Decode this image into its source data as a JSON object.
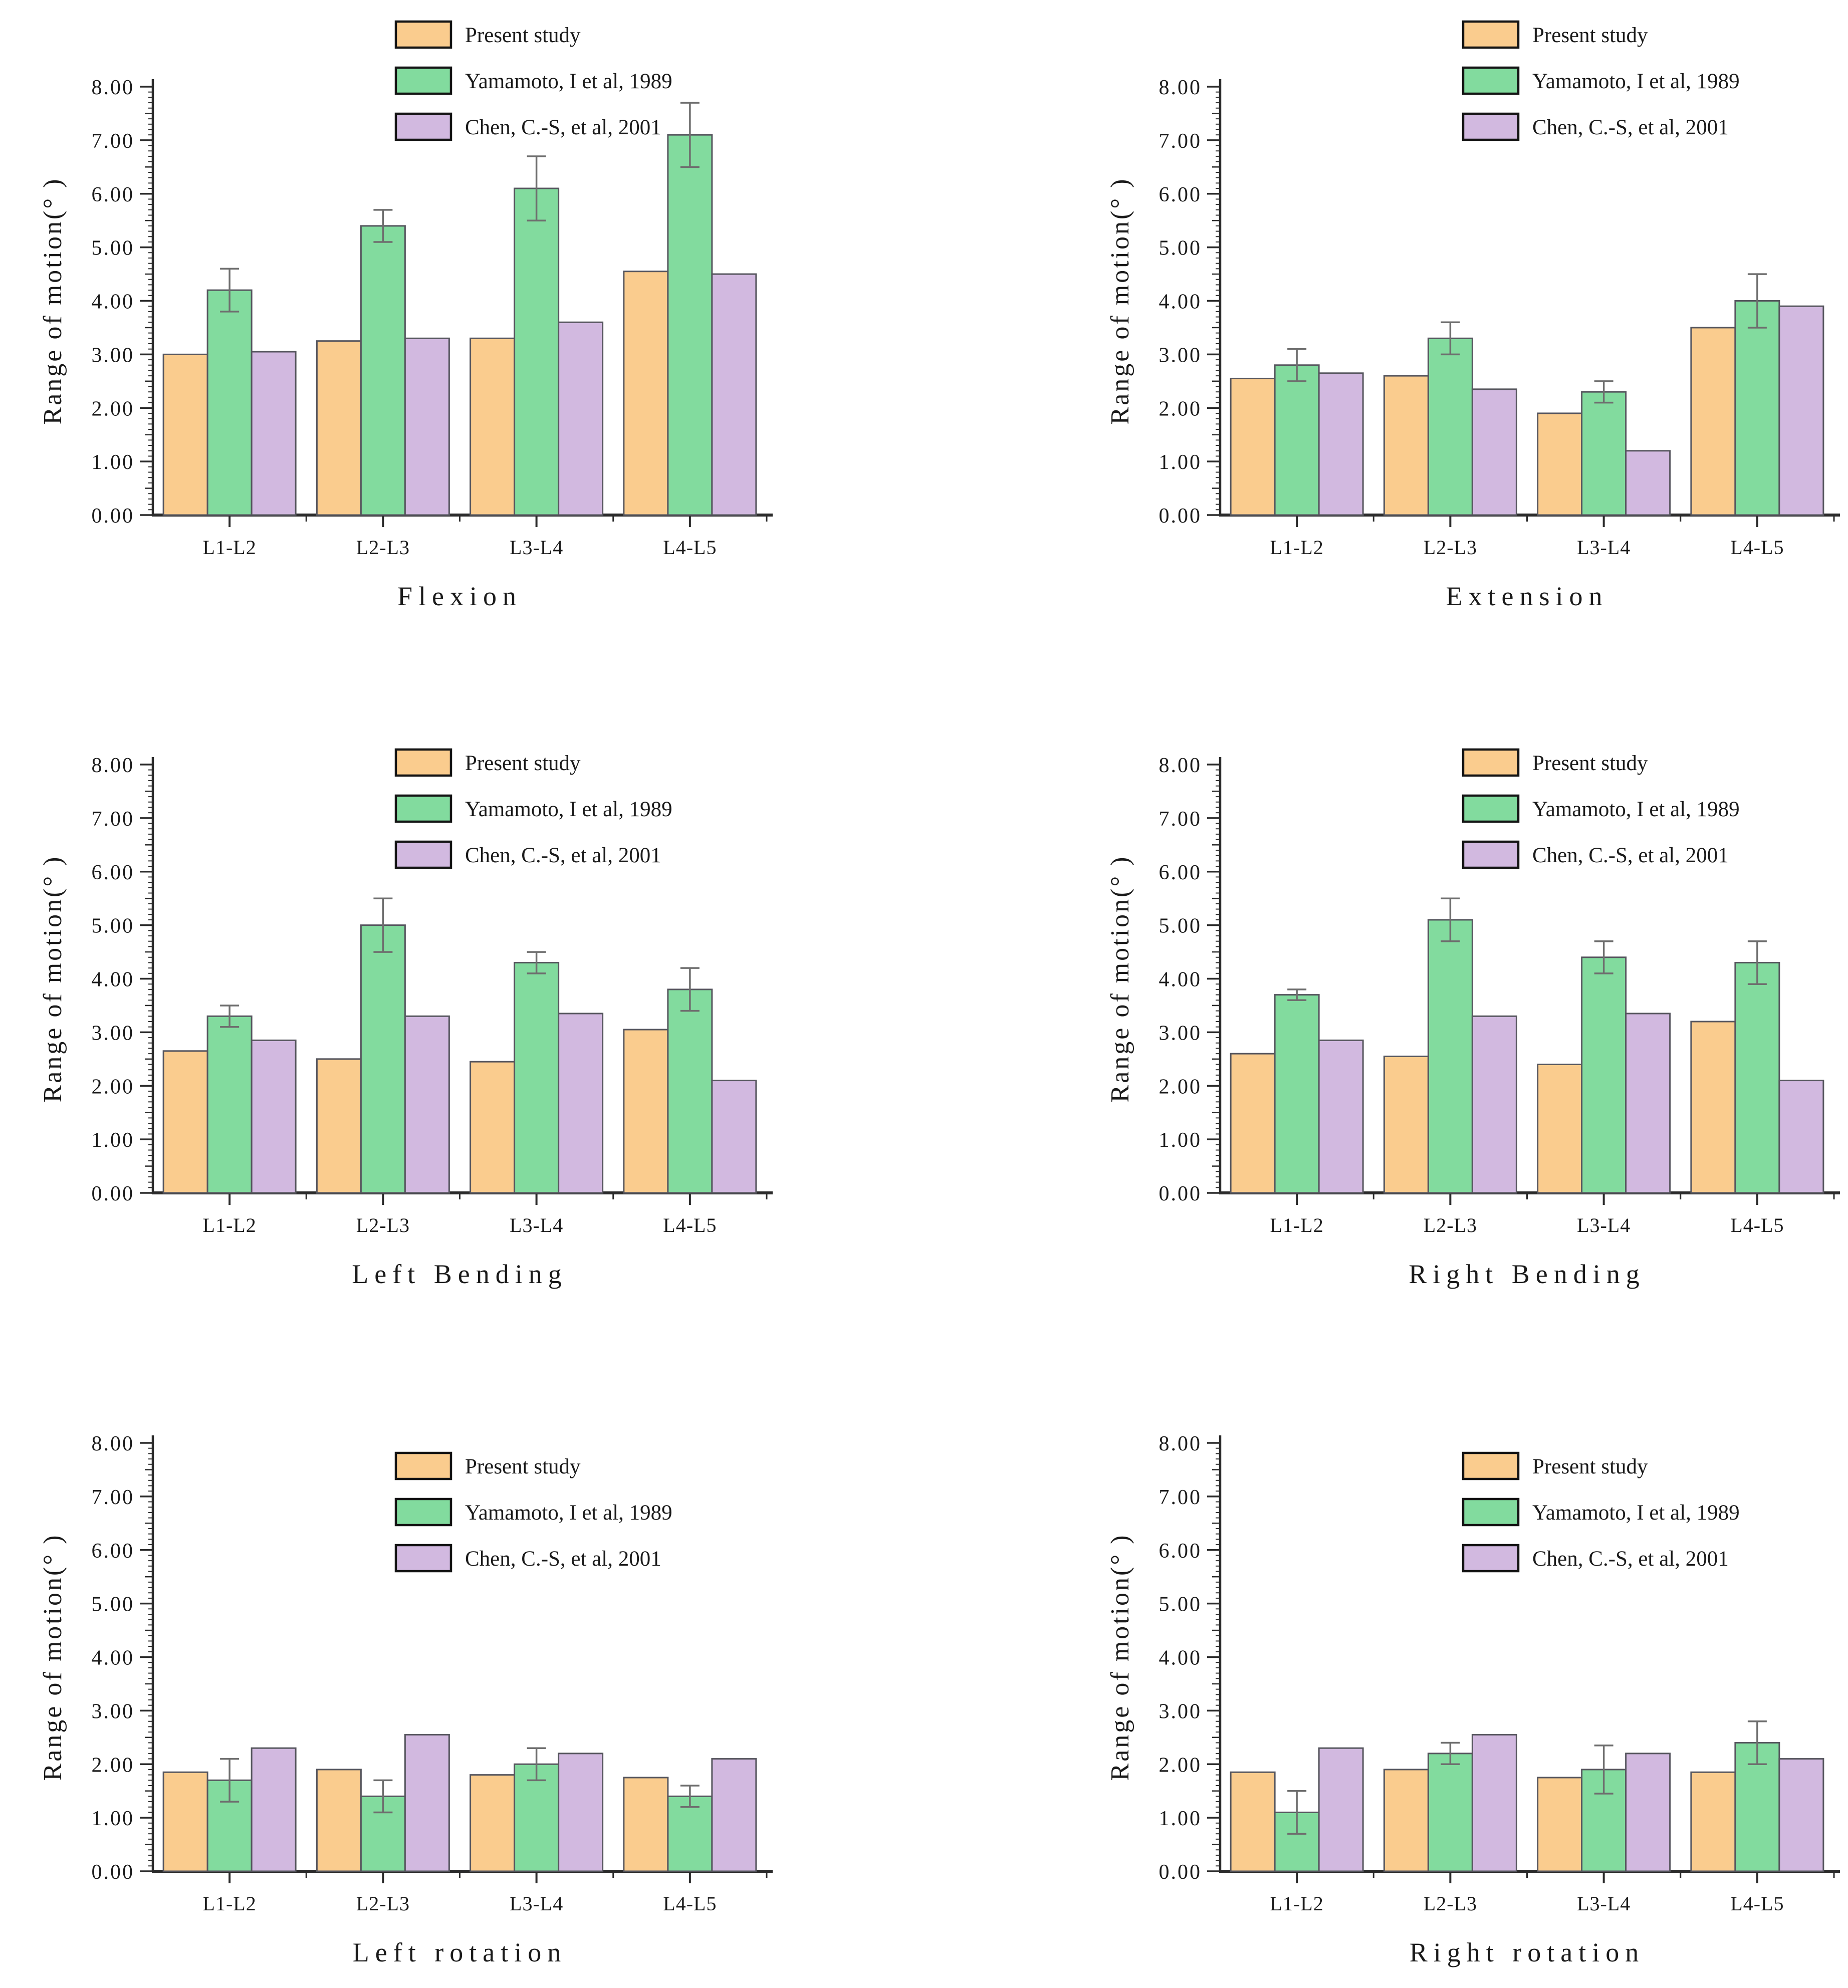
{
  "page": {
    "background": "#ffffff"
  },
  "legend": {
    "items": [
      {
        "label": "Present study",
        "color": "#FACC8E"
      },
      {
        "label": "Yamamoto, I et al,  1989",
        "color": "#82DB9E"
      },
      {
        "label": "Chen, C.-S,  et al,  2001",
        "color": "#D2B9E0"
      }
    ]
  },
  "axes": {
    "ylabel": "Range of motion(° )",
    "ylim": [
      0,
      8
    ],
    "ytick_step": 1,
    "ytick_labels": [
      "0.00",
      "1.00",
      "2.00",
      "3.00",
      "4.00",
      "5.00",
      "6.00",
      "7.00",
      "8.00"
    ],
    "categories": [
      "L1-L2",
      "L2-L3",
      "L3-L4",
      "L4-L5"
    ]
  },
  "chart_data": [
    {
      "type": "bar",
      "title": "Flexion",
      "xlabel": "Flexion",
      "ylabel": "Range of motion(° )",
      "ylim": [
        0,
        8
      ],
      "grid": false,
      "legend_position": "above-plot",
      "categories": [
        "L1-L2",
        "L2-L3",
        "L3-L4",
        "L4-L5"
      ],
      "series": [
        {
          "name": "Present study",
          "color": "#FACC8E",
          "values": [
            3.0,
            3.25,
            3.3,
            4.55
          ]
        },
        {
          "name": "Yamamoto, I et al,  1989",
          "color": "#82DB9E",
          "values": [
            4.2,
            5.4,
            6.1,
            7.1
          ],
          "errors": [
            0.4,
            0.3,
            0.6,
            0.6
          ]
        },
        {
          "name": "Chen, C.-S,  et al,  2001",
          "color": "#D2B9E0",
          "values": [
            3.05,
            3.3,
            3.6,
            4.5
          ]
        }
      ]
    },
    {
      "type": "bar",
      "title": "Extension",
      "xlabel": "Extension",
      "ylabel": "Range of motion(° )",
      "ylim": [
        0,
        8
      ],
      "grid": false,
      "legend_position": "above-plot",
      "categories": [
        "L1-L2",
        "L2-L3",
        "L3-L4",
        "L4-L5"
      ],
      "series": [
        {
          "name": "Present study",
          "color": "#FACC8E",
          "values": [
            2.55,
            2.6,
            1.9,
            3.5
          ]
        },
        {
          "name": "Yamamoto, I et al,  1989",
          "color": "#82DB9E",
          "values": [
            2.8,
            3.3,
            2.3,
            4.0
          ],
          "errors": [
            0.3,
            0.3,
            0.2,
            0.5
          ]
        },
        {
          "name": "Chen, C.-S,  et al,  2001",
          "color": "#D2B9E0",
          "values": [
            2.65,
            2.35,
            1.2,
            3.9
          ]
        }
      ]
    },
    {
      "type": "bar",
      "title": "Left Bending",
      "xlabel": "Left Bending",
      "ylabel": "Range of motion(° )",
      "ylim": [
        0,
        8
      ],
      "grid": false,
      "legend_position": "overlap-top",
      "categories": [
        "L1-L2",
        "L2-L3",
        "L3-L4",
        "L4-L5"
      ],
      "series": [
        {
          "name": "Present study",
          "color": "#FACC8E",
          "values": [
            2.65,
            2.5,
            2.45,
            3.05
          ]
        },
        {
          "name": "Yamamoto, I et al,  1989",
          "color": "#82DB9E",
          "values": [
            3.3,
            5.0,
            4.3,
            3.8
          ],
          "errors": [
            0.2,
            0.5,
            0.2,
            0.4
          ]
        },
        {
          "name": "Chen, C.-S,  et al,  2001",
          "color": "#D2B9E0",
          "values": [
            2.85,
            3.3,
            3.35,
            2.1
          ]
        }
      ]
    },
    {
      "type": "bar",
      "title": "Right Bending",
      "xlabel": "Right Bending",
      "ylabel": "Range of motion(° )",
      "ylim": [
        0,
        8
      ],
      "grid": false,
      "legend_position": "overlap-top",
      "categories": [
        "L1-L2",
        "L2-L3",
        "L3-L4",
        "L4-L5"
      ],
      "series": [
        {
          "name": "Present study",
          "color": "#FACC8E",
          "values": [
            2.6,
            2.55,
            2.4,
            3.2
          ]
        },
        {
          "name": "Yamamoto, I et al,  1989",
          "color": "#82DB9E",
          "values": [
            3.7,
            5.1,
            4.4,
            4.3
          ],
          "errors": [
            0.1,
            0.4,
            0.3,
            0.4
          ]
        },
        {
          "name": "Chen, C.-S,  et al,  2001",
          "color": "#D2B9E0",
          "values": [
            2.85,
            3.3,
            3.35,
            2.1
          ]
        }
      ]
    },
    {
      "type": "bar",
      "title": "Left rotation",
      "xlabel": "Left rotation",
      "ylabel": "Range of motion(° )",
      "ylim": [
        0,
        8
      ],
      "grid": false,
      "legend_position": "inside-top",
      "categories": [
        "L1-L2",
        "L2-L3",
        "L3-L4",
        "L4-L5"
      ],
      "series": [
        {
          "name": "Present study",
          "color": "#FACC8E",
          "values": [
            1.85,
            1.9,
            1.8,
            1.75
          ]
        },
        {
          "name": "Yamamoto, I et al,  1989",
          "color": "#82DB9E",
          "values": [
            1.7,
            1.4,
            2.0,
            1.4
          ],
          "errors": [
            0.4,
            0.3,
            0.3,
            0.2
          ]
        },
        {
          "name": "Chen, C.-S,  et al,  2001",
          "color": "#D2B9E0",
          "values": [
            2.3,
            2.55,
            2.2,
            2.1
          ]
        }
      ]
    },
    {
      "type": "bar",
      "title": "Right rotation",
      "xlabel": "Right rotation",
      "ylabel": "Range of motion(° )",
      "ylim": [
        0,
        8
      ],
      "grid": false,
      "legend_position": "inside-top",
      "categories": [
        "L1-L2",
        "L2-L3",
        "L3-L4",
        "L4-L5"
      ],
      "series": [
        {
          "name": "Present study",
          "color": "#FACC8E",
          "values": [
            1.85,
            1.9,
            1.75,
            1.85
          ]
        },
        {
          "name": "Yamamoto, I et al,  1989",
          "color": "#82DB9E",
          "values": [
            1.1,
            2.2,
            1.9,
            2.4
          ],
          "errors": [
            0.4,
            0.2,
            0.45,
            0.4
          ]
        },
        {
          "name": "Chen, C.-S,  et al,  2001",
          "color": "#D2B9E0",
          "values": [
            2.3,
            2.55,
            2.2,
            2.1
          ]
        }
      ]
    }
  ],
  "style_colors": {
    "bar_border": "#56565e",
    "legend_border": "#141414",
    "axis": "#2b2b2b",
    "error_bar": "#6e6e6e",
    "text": "#1a1a1a"
  }
}
